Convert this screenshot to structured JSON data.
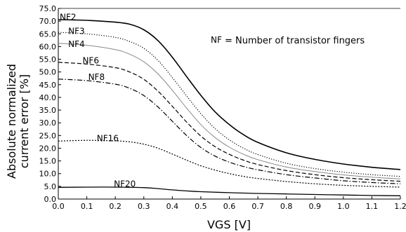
{
  "chart_data": {
    "type": "line",
    "xlabel": "VGS [V]",
    "ylabel_line1": "Absolute normalized",
    "ylabel_line2": "current error [%]",
    "xlim": [
      0.0,
      1.2
    ],
    "ylim": [
      0.0,
      75.0
    ],
    "x_ticks": [
      "0.0",
      "0.1",
      "0.2",
      "0.3",
      "0.4",
      "0.5",
      "0.6",
      "0.7",
      "0.8",
      "0.9",
      "1.0",
      "1.1",
      "1.2"
    ],
    "y_ticks": [
      "0.0",
      "5.0",
      "10.0",
      "15.0",
      "20.0",
      "25.0",
      "30.0",
      "35.0",
      "40.0",
      "45.0",
      "50.0",
      "55.0",
      "60.0",
      "65.0",
      "70.0",
      "75.0"
    ],
    "grid": false,
    "legend_text": {
      "abbrev": "NF",
      "description": "= Number of transistor fingers"
    },
    "series": [
      {
        "name": "NF2",
        "color": "#000000",
        "dash": "",
        "width": 1.6,
        "label_at": [
          0.0,
          71.5
        ],
        "x": [
          0.0,
          0.1,
          0.2,
          0.25,
          0.3,
          0.35,
          0.4,
          0.45,
          0.5,
          0.55,
          0.6,
          0.65,
          0.7,
          0.8,
          0.9,
          1.0,
          1.1,
          1.2
        ],
        "y": [
          70.6,
          70.3,
          69.6,
          68.8,
          66.6,
          62.3,
          55.8,
          48.2,
          40.8,
          34.3,
          29.3,
          25.3,
          22.3,
          18.2,
          15.6,
          13.8,
          12.5,
          11.6
        ]
      },
      {
        "name": "NF3",
        "color": "#000000",
        "dash": "1.2,2.2",
        "width": 1.2,
        "label_at": [
          0.03,
          66.0
        ],
        "x": [
          0.0,
          0.1,
          0.2,
          0.25,
          0.3,
          0.35,
          0.4,
          0.45,
          0.5,
          0.55,
          0.6,
          0.65,
          0.7,
          0.8,
          0.9,
          1.0,
          1.1,
          1.2
        ],
        "y": [
          65.6,
          65.0,
          63.6,
          62.0,
          59.3,
          54.5,
          47.8,
          40.6,
          33.6,
          27.7,
          23.3,
          20.0,
          17.5,
          14.1,
          12.0,
          10.6,
          9.6,
          8.9
        ]
      },
      {
        "name": "NF4",
        "color": "#888888",
        "dash": "",
        "width": 1.0,
        "label_at": [
          0.03,
          61.0
        ],
        "x": [
          0.0,
          0.1,
          0.2,
          0.25,
          0.3,
          0.35,
          0.4,
          0.45,
          0.5,
          0.55,
          0.6,
          0.65,
          0.7,
          0.8,
          0.9,
          1.0,
          1.1,
          1.2
        ],
        "y": [
          61.3,
          60.5,
          58.8,
          57.0,
          54.0,
          49.2,
          42.8,
          35.8,
          29.3,
          24.2,
          20.4,
          17.6,
          15.5,
          12.6,
          10.8,
          9.5,
          8.6,
          7.9
        ]
      },
      {
        "name": "NF6",
        "color": "#000000",
        "dash": "6,3",
        "width": 1.2,
        "label_at": [
          0.08,
          54.5
        ],
        "x": [
          0.0,
          0.1,
          0.2,
          0.25,
          0.3,
          0.35,
          0.4,
          0.45,
          0.5,
          0.55,
          0.6,
          0.65,
          0.7,
          0.8,
          0.9,
          1.0,
          1.1,
          1.2
        ],
        "y": [
          53.8,
          53.1,
          51.7,
          50.0,
          47.1,
          42.4,
          36.5,
          30.3,
          24.8,
          20.6,
          17.6,
          15.3,
          13.6,
          11.2,
          9.6,
          8.4,
          7.6,
          7.0
        ]
      },
      {
        "name": "NF8",
        "color": "#000000",
        "dash": "7,2.5,1.5,2.5",
        "width": 1.2,
        "label_at": [
          0.1,
          48.0
        ],
        "x": [
          0.0,
          0.1,
          0.2,
          0.25,
          0.3,
          0.35,
          0.4,
          0.45,
          0.5,
          0.55,
          0.6,
          0.65,
          0.7,
          0.8,
          0.9,
          1.0,
          1.1,
          1.2
        ],
        "y": [
          47.2,
          46.6,
          45.2,
          43.6,
          40.7,
          36.2,
          30.6,
          25.0,
          20.3,
          16.9,
          14.5,
          12.8,
          11.5,
          9.6,
          8.3,
          7.2,
          6.5,
          6.0
        ]
      },
      {
        "name": "NF16",
        "color": "#000000",
        "dash": "2,2",
        "width": 1.2,
        "label_at": [
          0.13,
          23.8
        ],
        "x": [
          0.0,
          0.1,
          0.2,
          0.25,
          0.3,
          0.35,
          0.4,
          0.45,
          0.5,
          0.55,
          0.6,
          0.65,
          0.7,
          0.8,
          0.9,
          1.0,
          1.1,
          1.2
        ],
        "y": [
          22.8,
          23.1,
          22.9,
          22.5,
          21.6,
          20.0,
          17.7,
          15.3,
          13.1,
          11.4,
          10.0,
          8.9,
          8.1,
          6.9,
          6.0,
          5.4,
          5.0,
          4.7
        ]
      },
      {
        "name": "NF20",
        "color": "#000000",
        "dash": "",
        "width": 1.3,
        "label_at": [
          0.19,
          5.9
        ],
        "x": [
          0.0,
          0.1,
          0.2,
          0.3,
          0.35,
          0.4,
          0.45,
          0.5,
          0.6,
          0.7,
          0.8,
          0.9,
          1.0,
          1.1,
          1.2
        ],
        "y": [
          4.6,
          4.7,
          4.7,
          4.5,
          4.1,
          3.6,
          3.2,
          2.9,
          2.5,
          2.2,
          2.0,
          1.8,
          1.6,
          1.4,
          1.3
        ]
      }
    ]
  }
}
